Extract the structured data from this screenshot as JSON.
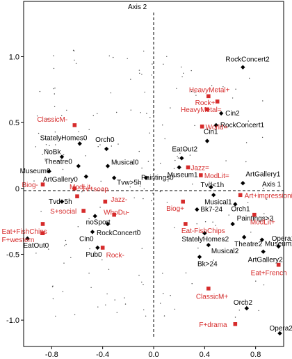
{
  "chart_data": {
    "type": "scatter",
    "xlim": [
      -1.02,
      1.02
    ],
    "ylim": [
      -1.2,
      1.42
    ],
    "x_ticks": [
      "-0.8",
      "-0.4",
      "0.0",
      "0.4",
      "0.8"
    ],
    "y_ticks": [
      "-1.0",
      "-0.5",
      "0",
      "0.5",
      "1.0"
    ],
    "x_tick_values": [
      -0.8,
      -0.4,
      0.0,
      0.4,
      0.8
    ],
    "y_tick_values": [
      -1.0,
      -0.5,
      0.0,
      0.5,
      1.0
    ],
    "axis1_label": "Axis 1",
    "axis2_label": "Axis 2",
    "grid": false,
    "colors": {
      "black": "#000000",
      "red": "#d62b2b"
    },
    "black_points": [
      {
        "label": "RockConcert2",
        "x": 0.7,
        "y": 0.92
      },
      {
        "label": "Cin2",
        "x": 0.53,
        "y": 0.57
      },
      {
        "label": "RockConcert1",
        "x": 0.49,
        "y": 0.48
      },
      {
        "label": "Cin1",
        "x": 0.42,
        "y": 0.36
      },
      {
        "label": "EatOut2",
        "x": 0.22,
        "y": 0.23
      },
      {
        "label": "Museum1",
        "x": 0.2,
        "y": 0.16
      },
      {
        "label": "ArtGallery1",
        "x": 0.7,
        "y": 0.04
      },
      {
        "label": "Tvd<1h",
        "x": 0.45,
        "y": 0.01
      },
      {
        "label": "Musical1",
        "x": 0.47,
        "y": -0.05
      },
      {
        "label": "Orch1",
        "x": 0.64,
        "y": -0.12
      },
      {
        "label": "Paintings>3",
        "x": 0.62,
        "y": -0.27
      },
      {
        "label": "StatelyHomes2",
        "x": 0.4,
        "y": -0.34
      },
      {
        "label": "Theatre2",
        "x": 0.71,
        "y": -0.37
      },
      {
        "label": "Museum2",
        "x": 0.85,
        "y": -0.39
      },
      {
        "label": "Opera1",
        "x": 0.98,
        "y": -0.44
      },
      {
        "label": "Musical2",
        "x": 0.43,
        "y": -0.43
      },
      {
        "label": "ArtGallery2",
        "x": 0.86,
        "y": -0.48
      },
      {
        "label": "Bk>24",
        "x": 0.36,
        "y": -0.52
      },
      {
        "label": "Bk7-24",
        "x": 0.34,
        "y": -0.16
      },
      {
        "label": "Orch2",
        "x": 0.73,
        "y": -0.91
      },
      {
        "label": "Opera2",
        "x": 0.99,
        "y": -1.1
      },
      {
        "label": "StatelyHomes0",
        "x": -0.58,
        "y": 0.34
      },
      {
        "label": "Orch0",
        "x": -0.37,
        "y": 0.3
      },
      {
        "label": "NoBk",
        "x": -0.72,
        "y": 0.24
      },
      {
        "label": "Theatre0",
        "x": -0.59,
        "y": 0.17
      },
      {
        "label": "Musical0",
        "x": -0.36,
        "y": 0.17
      },
      {
        "label": "ArtGallery0",
        "x": -0.53,
        "y": 0.09
      },
      {
        "label": "Tvw>5h",
        "x": -0.31,
        "y": 0.08
      },
      {
        "label": "Paintings0",
        "x": -0.06,
        "y": 0.08
      },
      {
        "label": "Museum0",
        "x": -0.82,
        "y": 0.13
      },
      {
        "label": "Tvd>5h",
        "x": -0.72,
        "y": -0.1
      },
      {
        "label": "noSport",
        "x": -0.46,
        "y": -0.21
      },
      {
        "label": "Cin0",
        "x": -0.48,
        "y": -0.33
      },
      {
        "label": "RockConcert0",
        "x": -0.36,
        "y": -0.27
      },
      {
        "label": "Pub0",
        "x": -0.44,
        "y": -0.45
      },
      {
        "label": "EatOut0",
        "x": -0.99,
        "y": -0.38
      }
    ],
    "red_points": [
      {
        "label": "HeavyMetal+",
        "x": 0.43,
        "y": 0.7
      },
      {
        "label": "Rock+",
        "x": 0.5,
        "y": 0.66
      },
      {
        "label": "HeavyMetal=",
        "x": 0.42,
        "y": 0.6
      },
      {
        "label": "World=",
        "x": 0.38,
        "y": 0.47
      },
      {
        "label": "ClassicM-",
        "x": -0.62,
        "y": 0.48
      },
      {
        "label": "Jazz=",
        "x": 0.27,
        "y": 0.16
      },
      {
        "label": "ModLit=",
        "x": 0.37,
        "y": 0.1
      },
      {
        "label": "Art+impressionism",
        "x": 0.68,
        "y": -0.05
      },
      {
        "label": "Biog-",
        "x": -0.87,
        "y": 0.03
      },
      {
        "label": "Tv+soap",
        "x": -0.62,
        "y": 0.0
      },
      {
        "label": "ModLit-",
        "x": -0.6,
        "y": -0.06
      },
      {
        "label": "Jazz-",
        "x": -0.38,
        "y": -0.1
      },
      {
        "label": "Biog+",
        "x": 0.23,
        "y": -0.1
      },
      {
        "label": "ModLit+",
        "x": 0.79,
        "y": -0.2
      },
      {
        "label": "S+social",
        "x": -0.55,
        "y": -0.17
      },
      {
        "label": "WhoDu-",
        "x": -0.31,
        "y": -0.2
      },
      {
        "label": "Eat+FishChips",
        "x": -0.87,
        "y": -0.27
      },
      {
        "label": "Eat-FishChips",
        "x": 0.25,
        "y": -0.27
      },
      {
        "label": "F+western",
        "x": -0.87,
        "y": -0.34
      },
      {
        "label": "Rock-",
        "x": -0.4,
        "y": -0.45
      },
      {
        "label": "Eat+French",
        "x": 0.98,
        "y": -0.58
      },
      {
        "label": "ClassicM+",
        "x": 0.43,
        "y": -0.76
      },
      {
        "label": "F+drama",
        "x": 0.64,
        "y": -1.03
      }
    ]
  }
}
